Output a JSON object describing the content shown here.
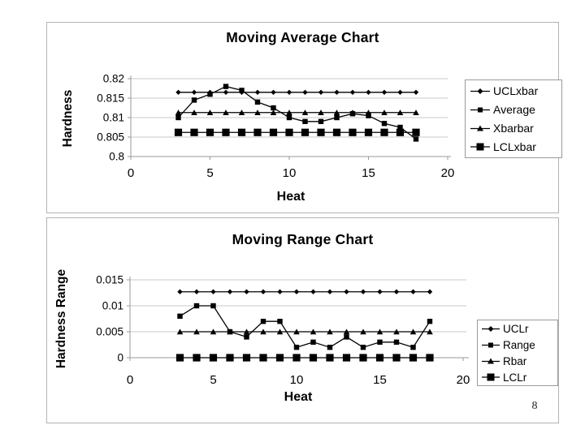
{
  "page_number": "8",
  "colors": {
    "line": "#000000",
    "grid": "#c9c9c9",
    "axis": "#9a9a9a",
    "panel_border": "#b3b3b3",
    "legend_border": "#9a9a9a",
    "background": "#ffffff",
    "text": "#000000"
  },
  "chart_data": [
    {
      "type": "line",
      "title": "Moving Average Chart",
      "xlabel": "Heat",
      "ylabel": "Hardness",
      "xlim": [
        0,
        20
      ],
      "ylim": [
        0.8,
        0.82
      ],
      "grid": true,
      "legend_position": "right",
      "xticks": [
        {
          "v": 0,
          "label": "0"
        },
        {
          "v": 5,
          "label": "5"
        },
        {
          "v": 10,
          "label": "10"
        },
        {
          "v": 15,
          "label": "15"
        },
        {
          "v": 20,
          "label": "20"
        }
      ],
      "yticks": [
        {
          "v": 0.82,
          "label": "0.82"
        },
        {
          "v": 0.815,
          "label": "0.815"
        },
        {
          "v": 0.81,
          "label": "0.81"
        },
        {
          "v": 0.805,
          "label": "0.805"
        },
        {
          "v": 0.8,
          "label": "0.8"
        }
      ],
      "x": [
        3,
        4,
        5,
        6,
        7,
        8,
        9,
        10,
        11,
        12,
        13,
        14,
        15,
        16,
        17,
        18
      ],
      "series": [
        {
          "name": "UCLxbar",
          "marker": "diamond",
          "values": [
            0.8165,
            0.8165,
            0.8165,
            0.8165,
            0.8165,
            0.8165,
            0.8165,
            0.8165,
            0.8165,
            0.8165,
            0.8165,
            0.8165,
            0.8165,
            0.8165,
            0.8165,
            0.8165
          ]
        },
        {
          "name": "Average",
          "marker": "square",
          "values": [
            0.81,
            0.8145,
            0.816,
            0.818,
            0.817,
            0.814,
            0.8125,
            0.81,
            0.809,
            0.809,
            0.81,
            0.811,
            0.8105,
            0.8085,
            0.8075,
            0.8045
          ]
        },
        {
          "name": "Xbarbar",
          "marker": "triangle",
          "values": [
            0.8113,
            0.8113,
            0.8113,
            0.8113,
            0.8113,
            0.8113,
            0.8113,
            0.8113,
            0.8113,
            0.8113,
            0.8113,
            0.8113,
            0.8113,
            0.8113,
            0.8113,
            0.8113
          ]
        },
        {
          "name": "LCLxbar",
          "marker": "square-large",
          "values": [
            0.8062,
            0.8062,
            0.8062,
            0.8062,
            0.8062,
            0.8062,
            0.8062,
            0.8062,
            0.8062,
            0.8062,
            0.8062,
            0.8062,
            0.8062,
            0.8062,
            0.8062,
            0.8062
          ]
        }
      ]
    },
    {
      "type": "line",
      "title": "Moving Range Chart",
      "xlabel": "Heat",
      "ylabel": "Hardness Range",
      "xlim": [
        0,
        20
      ],
      "ylim": [
        0,
        0.015
      ],
      "grid": true,
      "legend_position": "right",
      "xticks": [
        {
          "v": 0,
          "label": "0"
        },
        {
          "v": 5,
          "label": "5"
        },
        {
          "v": 10,
          "label": "10"
        },
        {
          "v": 15,
          "label": "15"
        },
        {
          "v": 20,
          "label": "20"
        }
      ],
      "yticks": [
        {
          "v": 0.015,
          "label": "0.015"
        },
        {
          "v": 0.01,
          "label": "0.01"
        },
        {
          "v": 0.005,
          "label": "0.005"
        },
        {
          "v": 0,
          "label": "0"
        }
      ],
      "x": [
        3,
        4,
        5,
        6,
        7,
        8,
        9,
        10,
        11,
        12,
        13,
        14,
        15,
        16,
        17,
        18
      ],
      "series": [
        {
          "name": "UCLr",
          "marker": "diamond",
          "values": [
            0.0127,
            0.0127,
            0.0127,
            0.0127,
            0.0127,
            0.0127,
            0.0127,
            0.0127,
            0.0127,
            0.0127,
            0.0127,
            0.0127,
            0.0127,
            0.0127,
            0.0127,
            0.0127
          ]
        },
        {
          "name": "Range",
          "marker": "square",
          "values": [
            0.008,
            0.01,
            0.01,
            0.005,
            0.004,
            0.007,
            0.007,
            0.002,
            0.003,
            0.002,
            0.004,
            0.002,
            0.003,
            0.003,
            0.002,
            0.007
          ]
        },
        {
          "name": "Rbar",
          "marker": "triangle",
          "values": [
            0.005,
            0.005,
            0.005,
            0.005,
            0.005,
            0.005,
            0.005,
            0.005,
            0.005,
            0.005,
            0.005,
            0.005,
            0.005,
            0.005,
            0.005,
            0.005
          ]
        },
        {
          "name": "LCLr",
          "marker": "square-large",
          "values": [
            0,
            0,
            0,
            0,
            0,
            0,
            0,
            0,
            0,
            0,
            0,
            0,
            0,
            0,
            0,
            0
          ]
        }
      ]
    }
  ]
}
